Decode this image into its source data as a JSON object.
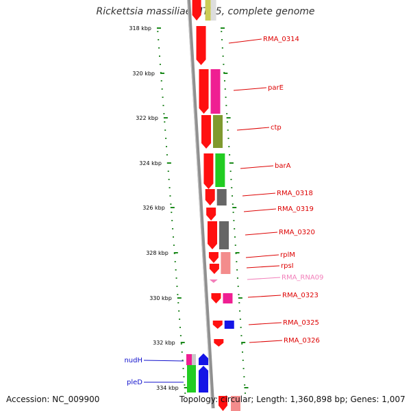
{
  "title": "Rickettsia massiliae MTU5, complete genome",
  "accession": "Accession: NC_009900",
  "topology": "Topology: circular; Length: 1,360,898 bp; Genes: 1,007",
  "colors": {
    "backbone": "#909090",
    "scale_dots": "#2e8b2e",
    "tick": "#1a8a1a",
    "gene_red": "#ff1010",
    "label_red": "#dd0000",
    "label_pink": "#f27fba",
    "label_blue": "#1010cc",
    "cog_magenta": "#ef1f92",
    "cog_olive": "#7f9a2e",
    "cog_green": "#22cc22",
    "cog_gray": "#666666",
    "cog_salmon": "#f38c8c",
    "cog_blue": "#1515e6",
    "cog_pink": "#ef60a0",
    "rna_pink": "#f27fba"
  },
  "scale": {
    "ticks": [
      "318 kbp",
      "320 kbp",
      "322 kbp",
      "324 kbp",
      "326 kbp",
      "328 kbp",
      "330 kbp",
      "332 kbp",
      "334 kbp"
    ]
  },
  "genes": [
    {
      "label": "RMA_0314",
      "color": "label_red"
    },
    {
      "label": "parE",
      "color": "label_red"
    },
    {
      "label": "ctp",
      "color": "label_red"
    },
    {
      "label": "barA",
      "color": "label_red"
    },
    {
      "label": "RMA_0318",
      "color": "label_red"
    },
    {
      "label": "RMA_0319",
      "color": "label_red"
    },
    {
      "label": "RMA_0320",
      "color": "label_red"
    },
    {
      "label": "rplM",
      "color": "label_red"
    },
    {
      "label": "rpsI",
      "color": "label_red"
    },
    {
      "label": "RMA_RNA09",
      "color": "label_pink"
    },
    {
      "label": "RMA_0323",
      "color": "label_red"
    },
    {
      "label": "RMA_0325",
      "color": "label_red"
    },
    {
      "label": "RMA_0326",
      "color": "label_red"
    },
    {
      "label": "nudH",
      "color": "label_blue"
    },
    {
      "label": "pleD",
      "color": "label_blue"
    }
  ]
}
